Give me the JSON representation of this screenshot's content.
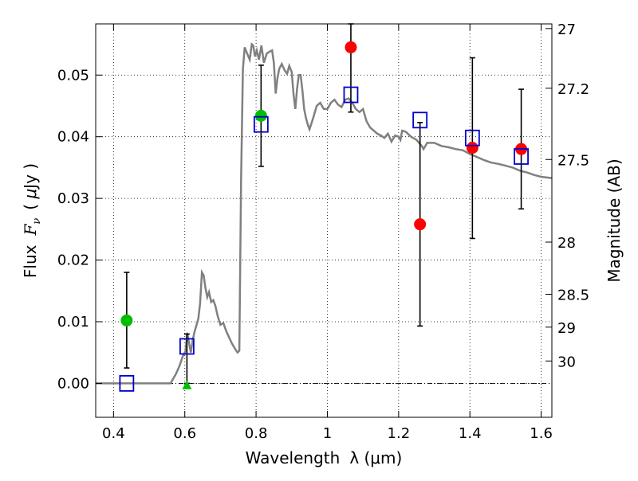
{
  "chart_data": {
    "type": "scatter",
    "xlabel_text": "Wavelength",
    "xlabel_math": "λ (μm)",
    "ylabel_text": "Flux",
    "ylabel_math": "F",
    "ylabel_sub": "ν",
    "ylabel_unit_open": "( ",
    "ylabel_unit_mu": "μ",
    "ylabel_unit_rest": "Jy )",
    "ylabel_right": "Magnitude (AB)",
    "xlim": [
      0.35,
      1.63
    ],
    "ylim": [
      -0.0055,
      0.0583
    ],
    "x_ticks": [
      0.4,
      0.6,
      0.8,
      1.0,
      1.2,
      1.4,
      1.6
    ],
    "x_tick_labels": [
      "0.4",
      "0.6",
      "0.8",
      "1",
      "1.2",
      "1.4",
      "1.6"
    ],
    "y_ticks": [
      0.0,
      0.01,
      0.02,
      0.03,
      0.04,
      0.05
    ],
    "y_tick_labels": [
      "0.00",
      "0.01",
      "0.02",
      "0.03",
      "0.04",
      "0.05"
    ],
    "mag_ticks": [
      27,
      27.2,
      27.5,
      28,
      28.5,
      29,
      30
    ],
    "mag_tick_labels": [
      "27",
      "27.2",
      "27.5",
      "28",
      "28.5",
      "29",
      "30"
    ],
    "grid": true,
    "model_sed": {
      "name": "model SED",
      "color": "#808080",
      "x": [
        0.35,
        0.56,
        0.575,
        0.585,
        0.595,
        0.602,
        0.607,
        0.612,
        0.617,
        0.622,
        0.628,
        0.633,
        0.638,
        0.643,
        0.648,
        0.653,
        0.658,
        0.663,
        0.668,
        0.674,
        0.68,
        0.686,
        0.692,
        0.7,
        0.708,
        0.716,
        0.724,
        0.732,
        0.742,
        0.748,
        0.753,
        0.758,
        0.763,
        0.768,
        0.775,
        0.782,
        0.788,
        0.792,
        0.797,
        0.802,
        0.808,
        0.815,
        0.822,
        0.83,
        0.838,
        0.845,
        0.85,
        0.855,
        0.86,
        0.865,
        0.872,
        0.88,
        0.887,
        0.893,
        0.9,
        0.905,
        0.91,
        0.915,
        0.92,
        0.925,
        0.93,
        0.935,
        0.94,
        0.945,
        0.95,
        0.96,
        0.97,
        0.98,
        0.99,
        1.0,
        1.01,
        1.02,
        1.03,
        1.04,
        1.05,
        1.06,
        1.07,
        1.08,
        1.09,
        1.1,
        1.11,
        1.12,
        1.13,
        1.14,
        1.15,
        1.16,
        1.17,
        1.18,
        1.19,
        1.2,
        1.205,
        1.21,
        1.22,
        1.235,
        1.25,
        1.265,
        1.27,
        1.28,
        1.3,
        1.32,
        1.34,
        1.36,
        1.38,
        1.4,
        1.42,
        1.44,
        1.46,
        1.48,
        1.5,
        1.52,
        1.54,
        1.56,
        1.58,
        1.6,
        1.63
      ],
      "y": [
        0.0,
        0.0,
        0.0015,
        0.0028,
        0.0045,
        0.0052,
        0.0082,
        0.0065,
        0.005,
        0.007,
        0.0085,
        0.0095,
        0.0105,
        0.013,
        0.018,
        0.0175,
        0.0155,
        0.014,
        0.0148,
        0.0132,
        0.0135,
        0.0125,
        0.011,
        0.0095,
        0.0098,
        0.0085,
        0.0075,
        0.0065,
        0.0055,
        0.005,
        0.0053,
        0.033,
        0.051,
        0.0545,
        0.0535,
        0.0525,
        0.055,
        0.0548,
        0.053,
        0.054,
        0.0525,
        0.0548,
        0.052,
        0.0535,
        0.0538,
        0.054,
        0.052,
        0.047,
        0.0495,
        0.051,
        0.0518,
        0.0508,
        0.0502,
        0.0515,
        0.0505,
        0.047,
        0.0445,
        0.0478,
        0.05,
        0.05,
        0.0475,
        0.0445,
        0.043,
        0.042,
        0.0412,
        0.043,
        0.045,
        0.0455,
        0.0445,
        0.0445,
        0.0455,
        0.046,
        0.0452,
        0.0448,
        0.046,
        0.0462,
        0.0455,
        0.0445,
        0.044,
        0.0445,
        0.0425,
        0.0415,
        0.041,
        0.0405,
        0.0402,
        0.0398,
        0.0405,
        0.0392,
        0.0402,
        0.04,
        0.0395,
        0.041,
        0.0408,
        0.04,
        0.0395,
        0.0385,
        0.038,
        0.039,
        0.039,
        0.0385,
        0.0383,
        0.038,
        0.0378,
        0.0372,
        0.0367,
        0.0362,
        0.0358,
        0.0356,
        0.0353,
        0.035,
        0.0345,
        0.0342,
        0.0338,
        0.0335,
        0.0333
      ]
    },
    "series": [
      {
        "name": "green detections",
        "marker": "circle",
        "color": "#00bf00",
        "points": [
          {
            "x": 0.437,
            "y": 0.0102,
            "err_lo": 0.0025,
            "err_hi": 0.018
          },
          {
            "x": 0.814,
            "y": 0.0434,
            "err_lo": 0.0352,
            "err_hi": 0.0516
          }
        ]
      },
      {
        "name": "green upper limit",
        "marker": "triangle",
        "color": "#00bf00",
        "points": [
          {
            "x": 0.606,
            "y": -0.0003,
            "err_lo": 0.0,
            "err_hi": 0.008
          }
        ]
      },
      {
        "name": "red detections",
        "marker": "circle",
        "color": "#ff0000",
        "points": [
          {
            "x": 1.066,
            "y": 0.0545,
            "err_lo": 0.044,
            "err_hi": 0.0583
          },
          {
            "x": 1.26,
            "y": 0.0258,
            "err_lo": 0.0093,
            "err_hi": 0.0423
          },
          {
            "x": 1.407,
            "y": 0.0382,
            "err_lo": 0.0235,
            "err_hi": 0.0528
          },
          {
            "x": 1.544,
            "y": 0.038,
            "err_lo": 0.0283,
            "err_hi": 0.0477
          }
        ]
      },
      {
        "name": "model band fluxes",
        "marker": "square-open",
        "color": "#0000cc",
        "points": [
          {
            "x": 0.437,
            "y": 0.0
          },
          {
            "x": 0.606,
            "y": 0.006
          },
          {
            "x": 0.814,
            "y": 0.042
          },
          {
            "x": 1.066,
            "y": 0.0468
          },
          {
            "x": 1.26,
            "y": 0.0427
          },
          {
            "x": 1.407,
            "y": 0.0398
          },
          {
            "x": 1.544,
            "y": 0.0368
          }
        ]
      }
    ]
  }
}
